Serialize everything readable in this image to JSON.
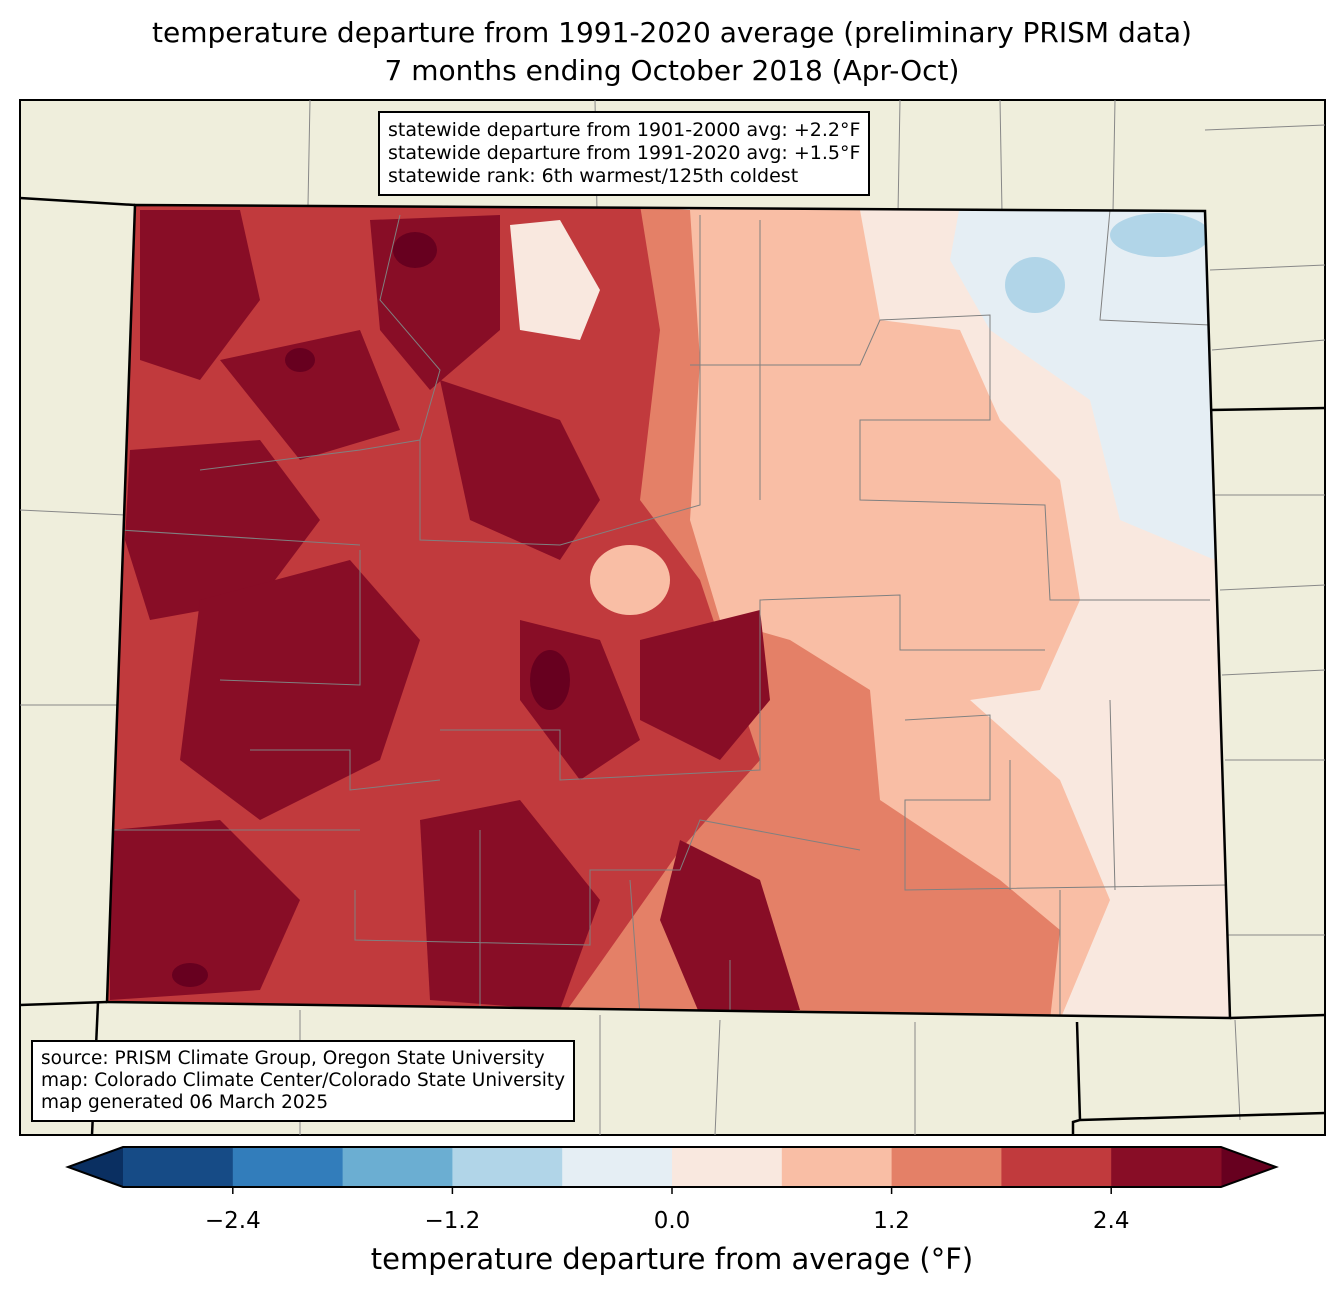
{
  "title_line1": "temperature departure from 1991-2020 average (preliminary PRISM data)",
  "title_line2": "7 months ending October 2018 (Apr-Oct)",
  "stats": [
    "statewide departure from 1901-2000 avg: +2.2°F",
    "statewide departure from 1991-2020 avg: +1.5°F",
    "statewide rank: 6th warmest/125th coldest"
  ],
  "credits": [
    "source: PRISM Climate Group, Oregon State University",
    "map: Colorado Climate Center/Colorado State University",
    "map generated 06 March 2025"
  ],
  "colors": {
    "background": "#efeedc",
    "border": "#000000",
    "county_lines": "#808080"
  },
  "chart_data": {
    "type": "heatmap",
    "region": "Colorado",
    "colorbar": {
      "label": "temperature departure from average (°F)",
      "levels": [
        -3.0,
        -2.4,
        -1.8,
        -1.2,
        -0.6,
        0.0,
        0.6,
        1.2,
        1.8,
        2.4,
        3.0
      ],
      "colors": [
        "#164b86",
        "#327dbb",
        "#6baed2",
        "#b1d5e8",
        "#e5eef4",
        "#f9e8df",
        "#f9bea5",
        "#e48067",
        "#c13a3d",
        "#880d26"
      ],
      "under_color": "#0a2f61",
      "over_color": "#67001f",
      "ticks": [
        "−2.4",
        "−1.2",
        "0.0",
        "1.2",
        "2.4"
      ],
      "tick_values": [
        -2.4,
        -1.2,
        0.0,
        1.2,
        2.4
      ]
    },
    "pattern": "western mountains +1.8 to +3.0°F; eastern plains 0.0 to +1.2°F; far northeast slightly below average"
  }
}
